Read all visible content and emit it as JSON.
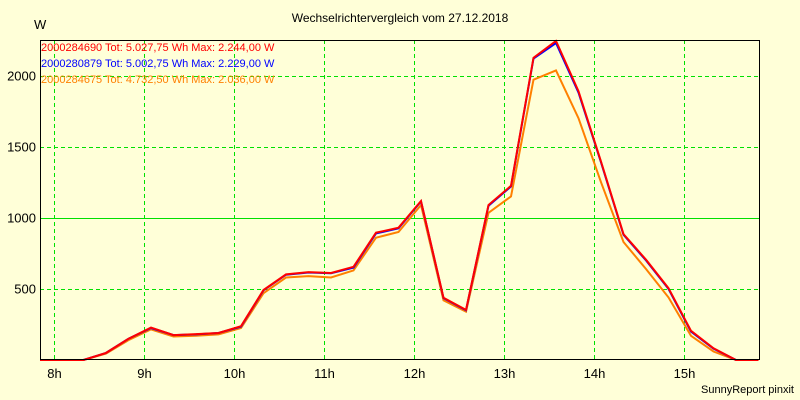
{
  "chart_data": {
    "type": "line",
    "title": "Wechselrichtervergleich vom 27.12.2018",
    "ylabel": "W",
    "xlabel": "",
    "ylim": [
      0,
      2250
    ],
    "xlim": [
      "07:51",
      "15:51"
    ],
    "yticks": [
      500,
      1000,
      1500,
      2000
    ],
    "ytick_labels": [
      "500",
      "1000",
      "1500",
      "2000"
    ],
    "xticks": [
      "08:00",
      "09:00",
      "10:00",
      "11:00",
      "12:00",
      "13:00",
      "14:00",
      "15:00"
    ],
    "xtick_labels": [
      "8h",
      "9h",
      "10h",
      "11h",
      "12h",
      "13h",
      "14h",
      "15h"
    ],
    "grid": true,
    "highlight_gridline": 1000,
    "x": [
      "07:50",
      "08:05",
      "08:20",
      "08:35",
      "08:50",
      "09:05",
      "09:20",
      "09:35",
      "09:50",
      "10:05",
      "10:20",
      "10:35",
      "10:50",
      "11:05",
      "11:20",
      "11:35",
      "11:50",
      "12:05",
      "12:20",
      "12:35",
      "12:50",
      "13:05",
      "13:20",
      "13:35",
      "13:50",
      "14:05",
      "14:20",
      "14:35",
      "14:50",
      "15:05",
      "15:20",
      "15:35",
      "15:50"
    ],
    "series": [
      {
        "name": "2000284690",
        "legend": "2000284690 Tot: 5.027,75 Wh Max: 2.244,00 W",
        "color": "#ff0000",
        "values": [
          0,
          0,
          0,
          50,
          150,
          228,
          175,
          182,
          190,
          238,
          492,
          602,
          618,
          612,
          655,
          895,
          930,
          1118,
          438,
          352,
          1090,
          1225,
          2125,
          2244,
          1890,
          1395,
          885,
          705,
          505,
          205,
          82,
          0,
          0
        ]
      },
      {
        "name": "2000280879",
        "legend": "2000280879 Tot: 5.002,75 Wh Max: 2.229,00 W",
        "color": "#0000ff",
        "values": [
          0,
          0,
          0,
          50,
          150,
          225,
          175,
          180,
          190,
          235,
          490,
          600,
          615,
          610,
          650,
          890,
          925,
          1115,
          435,
          350,
          1085,
          1220,
          2120,
          2229,
          1880,
          1390,
          880,
          700,
          500,
          200,
          80,
          0,
          0
        ]
      },
      {
        "name": "2000284675",
        "legend": "2000284675 Tot: 4.732,50 Wh Max: 2.036,00 W",
        "color": "#ff8000",
        "values": [
          0,
          0,
          0,
          45,
          140,
          215,
          165,
          170,
          180,
          225,
          470,
          580,
          590,
          580,
          630,
          860,
          900,
          1090,
          420,
          340,
          1035,
          1150,
          1971,
          2036,
          1700,
          1250,
          830,
          640,
          440,
          170,
          60,
          0,
          0
        ]
      }
    ],
    "legend_position": "top-left",
    "colors": {
      "background": "#ffffd8",
      "grid": "#00e000",
      "axis": "#000000"
    }
  },
  "footer": "SunnyReport pinxit"
}
